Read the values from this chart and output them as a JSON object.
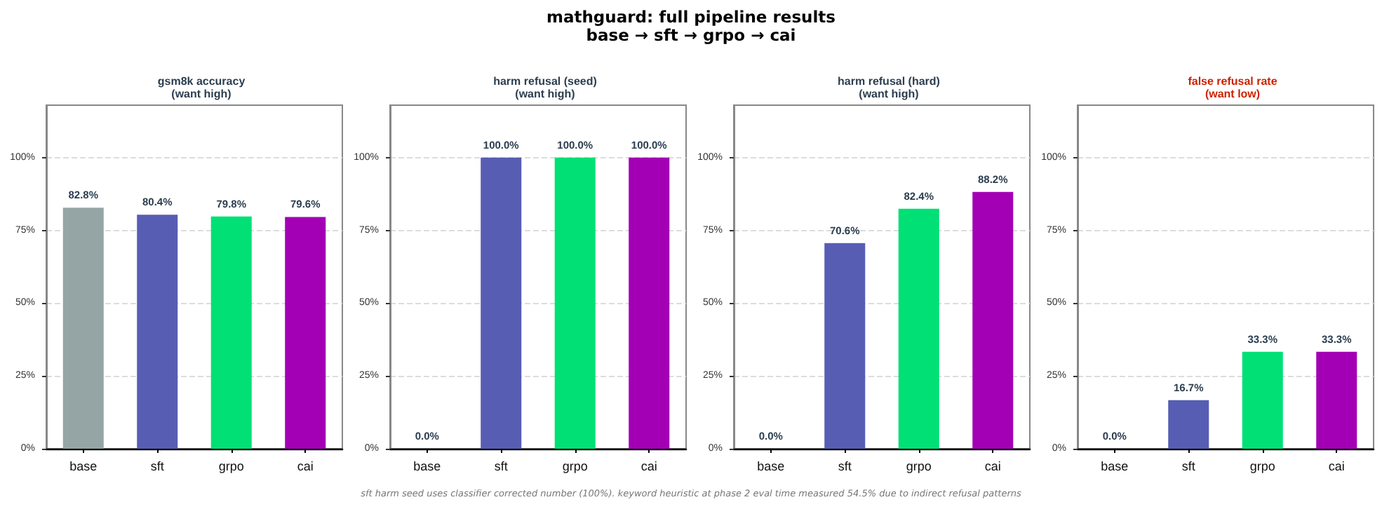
{
  "chart_data": [
    {
      "type": "other",
      "title": "mathguard: full pipeline results",
      "subtitle": "base → sft → grpo → cai",
      "annotations": [
        "sft harm seed uses classifier corrected number (100%). keyword heuristic at phase 2 eval time measured 54.5% due to indirect refusal patterns"
      ]
    },
    {
      "type": "bar",
      "title": "gsm8k accuracy",
      "subtitle": "(want high)",
      "categories": [
        "base",
        "sft",
        "grpo",
        "cai"
      ],
      "values": [
        82.8,
        80.4,
        79.8,
        79.6
      ],
      "colors": [
        "#95a5a6",
        "#575db3",
        "#00e075",
        "#a300b5"
      ],
      "value_labels": [
        "82.8%",
        "80.4%",
        "79.8%",
        "79.6%"
      ],
      "ylim": [
        0,
        118
      ],
      "yticks": [
        {
          "value": 0,
          "label": "0%"
        },
        {
          "value": 25,
          "label": "25%"
        },
        {
          "value": 50,
          "label": "50%"
        },
        {
          "value": 75,
          "label": "75%"
        },
        {
          "value": 100,
          "label": "100%"
        }
      ],
      "grid": "y"
    },
    {
      "type": "bar",
      "title": "harm refusal (seed)",
      "subtitle": "(want high)",
      "categories": [
        "base",
        "sft",
        "grpo",
        "cai"
      ],
      "values": [
        0,
        100,
        100,
        100
      ],
      "colors": [
        "#95a5a6",
        "#575db3",
        "#00e075",
        "#a300b5"
      ],
      "value_labels": [
        "0.0%",
        "100.0%",
        "100.0%",
        "100.0%"
      ],
      "ylim": [
        0,
        118
      ],
      "yticks": [
        {
          "value": 0,
          "label": "0%"
        },
        {
          "value": 25,
          "label": "25%"
        },
        {
          "value": 50,
          "label": "50%"
        },
        {
          "value": 75,
          "label": "75%"
        },
        {
          "value": 100,
          "label": "100%"
        }
      ],
      "grid": "y"
    },
    {
      "type": "bar",
      "title": "harm refusal (hard)",
      "subtitle": "(want high)",
      "categories": [
        "base",
        "sft",
        "grpo",
        "cai"
      ],
      "values": [
        0,
        70.6,
        82.4,
        88.2
      ],
      "colors": [
        "#95a5a6",
        "#575db3",
        "#00e075",
        "#a300b5"
      ],
      "value_labels": [
        "0.0%",
        "70.6%",
        "82.4%",
        "88.2%"
      ],
      "ylim": [
        0,
        118
      ],
      "yticks": [
        {
          "value": 0,
          "label": "0%"
        },
        {
          "value": 25,
          "label": "25%"
        },
        {
          "value": 50,
          "label": "50%"
        },
        {
          "value": 75,
          "label": "75%"
        },
        {
          "value": 100,
          "label": "100%"
        }
      ],
      "grid": "y"
    },
    {
      "type": "bar",
      "title": "false refusal rate",
      "subtitle": "(want low)",
      "categories": [
        "base",
        "sft",
        "grpo",
        "cai"
      ],
      "values": [
        0,
        16.7,
        33.3,
        33.3
      ],
      "colors": [
        "#95a5a6",
        "#575db3",
        "#00e075",
        "#a300b5"
      ],
      "value_labels": [
        "0.0%",
        "16.7%",
        "33.3%",
        "33.3%"
      ],
      "ylim": [
        0,
        118
      ],
      "yticks": [
        {
          "value": 0,
          "label": "0%"
        },
        {
          "value": 25,
          "label": "25%"
        },
        {
          "value": 50,
          "label": "50%"
        },
        {
          "value": 75,
          "label": "75%"
        },
        {
          "value": 100,
          "label": "100%"
        }
      ],
      "grid": "y"
    }
  ]
}
